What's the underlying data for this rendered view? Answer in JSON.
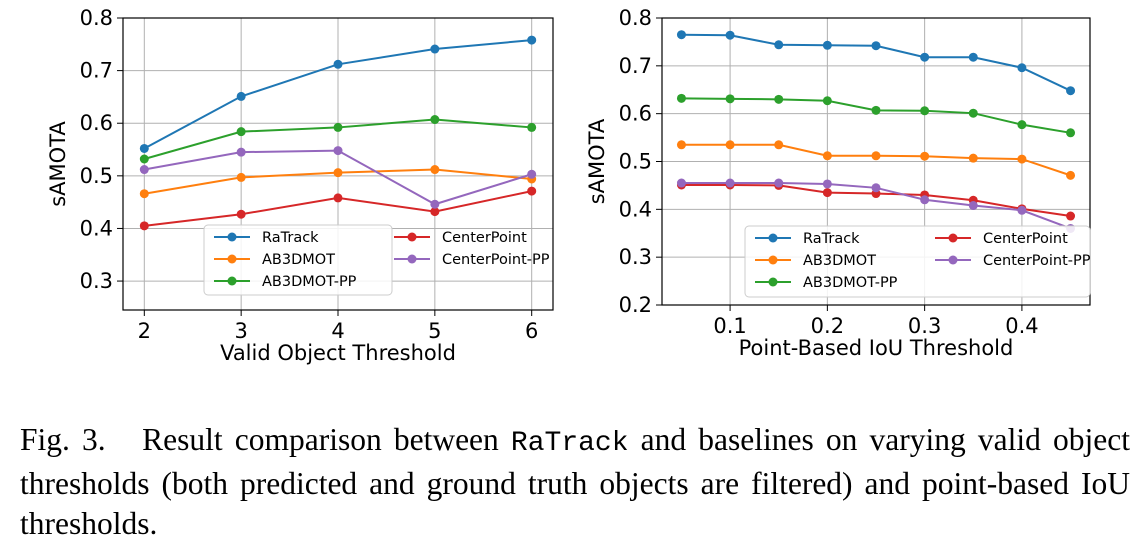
{
  "chart_data": [
    {
      "type": "line",
      "xlabel": "Valid Object Threshold",
      "ylabel": "sAMOTA",
      "xlim": [
        1.78,
        6.22
      ],
      "ylim": [
        0.245,
        0.8
      ],
      "xticks": [
        "2",
        "3",
        "4",
        "5",
        "6"
      ],
      "yticks": [
        "0.3",
        "0.4",
        "0.5",
        "0.6",
        "0.7",
        "0.8"
      ],
      "grid": true,
      "legend": "lower-right, 2 columns",
      "x": [
        2,
        3,
        4,
        5,
        6
      ],
      "series": [
        {
          "name": "RaTrack",
          "color": "#1f77b4",
          "values": [
            0.552,
            0.651,
            0.712,
            0.741,
            0.758
          ]
        },
        {
          "name": "AB3DMOT",
          "color": "#ff7f0e",
          "values": [
            0.466,
            0.497,
            0.506,
            0.512,
            0.494
          ]
        },
        {
          "name": "AB3DMOT-PP",
          "color": "#2ca02c",
          "values": [
            0.532,
            0.584,
            0.592,
            0.607,
            0.592
          ]
        },
        {
          "name": "CenterPoint",
          "color": "#d62728",
          "values": [
            0.405,
            0.427,
            0.458,
            0.432,
            0.471
          ]
        },
        {
          "name": "CenterPoint-PP",
          "color": "#9467bd",
          "values": [
            0.512,
            0.545,
            0.548,
            0.446,
            0.503
          ]
        }
      ]
    },
    {
      "type": "line",
      "xlabel": "Point-Based IoU Threshold",
      "ylabel": "sAMOTA",
      "xlim": [
        0.03,
        0.47
      ],
      "ylim": [
        0.2,
        0.8
      ],
      "xticks": [
        "0.1",
        "0.2",
        "0.3",
        "0.4"
      ],
      "yticks": [
        "0.2",
        "0.3",
        "0.4",
        "0.5",
        "0.6",
        "0.7",
        "0.8"
      ],
      "grid": true,
      "legend": "lower-right, 2 columns",
      "x": [
        0.05,
        0.1,
        0.15,
        0.2,
        0.25,
        0.3,
        0.35,
        0.4,
        0.45
      ],
      "series": [
        {
          "name": "RaTrack",
          "color": "#1f77b4",
          "values": [
            0.765,
            0.764,
            0.744,
            0.743,
            0.742,
            0.718,
            0.718,
            0.696,
            0.648
          ]
        },
        {
          "name": "AB3DMOT",
          "color": "#ff7f0e",
          "values": [
            0.535,
            0.535,
            0.535,
            0.512,
            0.512,
            0.511,
            0.507,
            0.505,
            0.471
          ]
        },
        {
          "name": "AB3DMOT-PP",
          "color": "#2ca02c",
          "values": [
            0.632,
            0.631,
            0.63,
            0.627,
            0.607,
            0.606,
            0.601,
            0.577,
            0.56
          ]
        },
        {
          "name": "CenterPoint",
          "color": "#d62728",
          "values": [
            0.451,
            0.451,
            0.45,
            0.435,
            0.433,
            0.43,
            0.419,
            0.401,
            0.386
          ]
        },
        {
          "name": "CenterPoint-PP",
          "color": "#9467bd",
          "values": [
            0.455,
            0.455,
            0.455,
            0.453,
            0.445,
            0.42,
            0.408,
            0.398,
            0.36
          ]
        }
      ]
    }
  ],
  "caption": {
    "prefix": "Fig. 3.",
    "text_before": "Result comparison between ",
    "method": "RaTrack",
    "text_after": " and baselines on varying valid object thresholds (both predicted and ground truth objects are filtered) and point-based IoU thresholds."
  }
}
